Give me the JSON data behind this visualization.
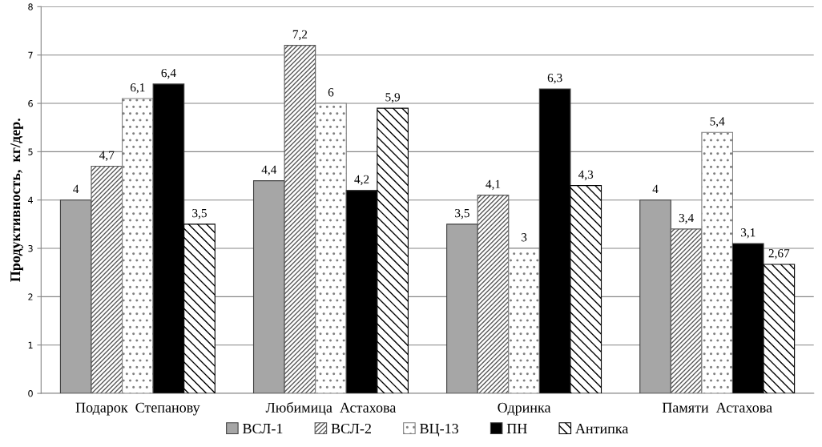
{
  "chart_data": {
    "type": "bar",
    "ylabel": "Продуктивность,  кг/дер.",
    "categories": [
      "Подарок  Степанову",
      "Любимица  Астахова",
      "Одринка",
      "Памяти  Астахова"
    ],
    "series": [
      {
        "name": "ВСЛ-1",
        "color": "#a6a6a6",
        "values": [
          4,
          4.4,
          3.5,
          4
        ],
        "value_labels": [
          "4",
          "4,4",
          "3,5",
          "4"
        ]
      },
      {
        "name": "ВСЛ-2",
        "color": "#595959",
        "values": [
          4.7,
          7.2,
          4.1,
          3.4
        ],
        "value_labels": [
          "4,7",
          "7,2",
          "4,1",
          "3,4"
        ]
      },
      {
        "name": "ВЦ-13",
        "color": "#808080",
        "values": [
          6.1,
          6,
          3,
          5.4
        ],
        "value_labels": [
          "6,1",
          "6",
          "3",
          "5,4"
        ]
      },
      {
        "name": "ПН",
        "color": "#000000",
        "values": [
          6.4,
          4.2,
          6.3,
          3.1
        ],
        "value_labels": [
          "6,4",
          "4,2",
          "6,3",
          "3,1"
        ]
      },
      {
        "name": "Антипка",
        "color": "#000000",
        "values": [
          3.5,
          5.9,
          4.3,
          2.67
        ],
        "value_labels": [
          "3,5",
          "5,9",
          "4,3",
          "2,67"
        ]
      }
    ],
    "ylim": [
      0,
      8
    ],
    "yticks": [
      0,
      1,
      2,
      3,
      4,
      5,
      6,
      7,
      8
    ],
    "grid": "y",
    "legend": "bottom"
  }
}
